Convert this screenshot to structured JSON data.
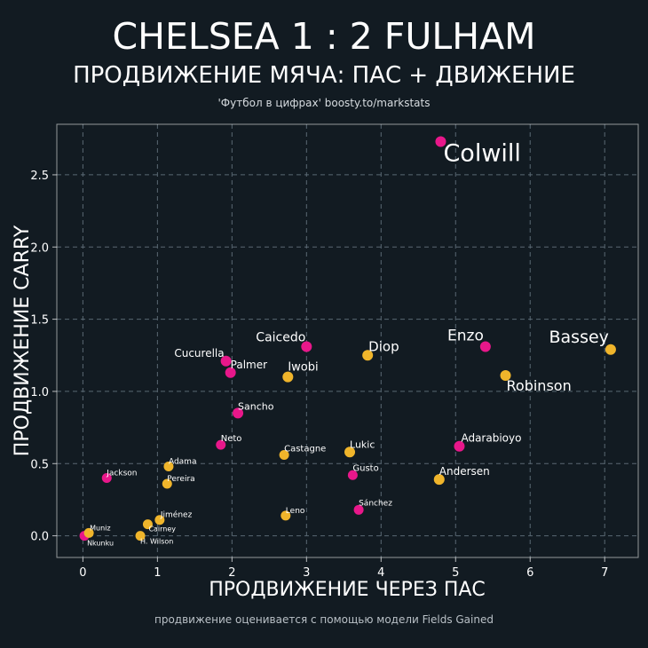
{
  "header": {
    "title": "CHELSEA 1 : 2 FULHAM",
    "subtitle": "ПРОДВИЖЕНИЕ МЯЧА: ПАС + ДВИЖЕНИЕ",
    "source": "'Футбол в цифрах' boosty.to/markstats"
  },
  "footnote": "продвижение оценивается с помощью модели Fields Gained",
  "colors": {
    "background": "#121b22",
    "chelsea": "#e8178a",
    "fulham": "#f0b52b",
    "grid": "#5a6873"
  },
  "chart_data": {
    "type": "scatter",
    "title": "ПРОДВИЖЕНИЕ МЯЧА: ПАС + ДВИЖЕНИЕ",
    "xlabel": "ПРОДВИЖЕНИЕ ЧЕРЕЗ ПАС",
    "ylabel": "ПРОДВИЖЕНИЕ CARRY",
    "xlim": [
      -0.35,
      7.45
    ],
    "ylim": [
      -0.15,
      2.85
    ],
    "xticks": [
      "0",
      "1",
      "2",
      "3",
      "4",
      "5",
      "6",
      "7"
    ],
    "yticks": [
      "0.0",
      "0.5",
      "1.0",
      "1.5",
      "2.0",
      "2.5"
    ],
    "grid": true,
    "series": [
      {
        "name": "Chelsea",
        "color": "#e8178a",
        "points": [
          {
            "label": "Colwill",
            "x": 4.8,
            "y": 2.73,
            "size": "xl"
          },
          {
            "label": "Enzo",
            "x": 5.4,
            "y": 1.31,
            "size": "l"
          },
          {
            "label": "Caicedo",
            "x": 3.0,
            "y": 1.31,
            "size": "m"
          },
          {
            "label": "Cucurella",
            "x": 1.92,
            "y": 1.21,
            "size": "s"
          },
          {
            "label": "Palmer",
            "x": 1.98,
            "y": 1.13,
            "size": "s"
          },
          {
            "label": "Sancho",
            "x": 2.08,
            "y": 0.85,
            "size": "s"
          },
          {
            "label": "Neto",
            "x": 1.85,
            "y": 0.63,
            "size": "xs"
          },
          {
            "label": "Adarabioyo",
            "x": 5.05,
            "y": 0.62,
            "size": "s"
          },
          {
            "label": "Gusto",
            "x": 3.62,
            "y": 0.42,
            "size": "xs"
          },
          {
            "label": "Jackson",
            "x": 0.32,
            "y": 0.4,
            "size": "xs"
          },
          {
            "label": "Sánchez",
            "x": 3.7,
            "y": 0.18,
            "size": "xs"
          },
          {
            "label": "Nkunku",
            "x": 0.02,
            "y": 0.0,
            "size": "xs"
          }
        ]
      },
      {
        "name": "Fulham",
        "color": "#f0b52b",
        "points": [
          {
            "label": "Bassey",
            "x": 7.08,
            "y": 1.29,
            "size": "l"
          },
          {
            "label": "Robinson",
            "x": 5.67,
            "y": 1.11,
            "size": "m"
          },
          {
            "label": "Diop",
            "x": 3.82,
            "y": 1.25,
            "size": "m"
          },
          {
            "label": "Iwobi",
            "x": 2.75,
            "y": 1.1,
            "size": "s"
          },
          {
            "label": "Lukic",
            "x": 3.58,
            "y": 0.58,
            "size": "s"
          },
          {
            "label": "Castagne",
            "x": 2.7,
            "y": 0.56,
            "size": "xs"
          },
          {
            "label": "Andersen",
            "x": 4.78,
            "y": 0.39,
            "size": "s"
          },
          {
            "label": "Adama",
            "x": 1.15,
            "y": 0.48,
            "size": "xs"
          },
          {
            "label": "Pereira",
            "x": 1.13,
            "y": 0.36,
            "size": "xs"
          },
          {
            "label": "Leno",
            "x": 2.72,
            "y": 0.14,
            "size": "xs"
          },
          {
            "label": "Jiménez",
            "x": 1.03,
            "y": 0.11,
            "size": "xs"
          },
          {
            "label": "Cairney",
            "x": 0.87,
            "y": 0.08,
            "size": "xs"
          },
          {
            "label": "H. Wilson",
            "x": 0.77,
            "y": 0.0,
            "size": "xs"
          },
          {
            "label": "Muniz",
            "x": 0.08,
            "y": 0.02,
            "size": "xs"
          }
        ]
      }
    ]
  }
}
